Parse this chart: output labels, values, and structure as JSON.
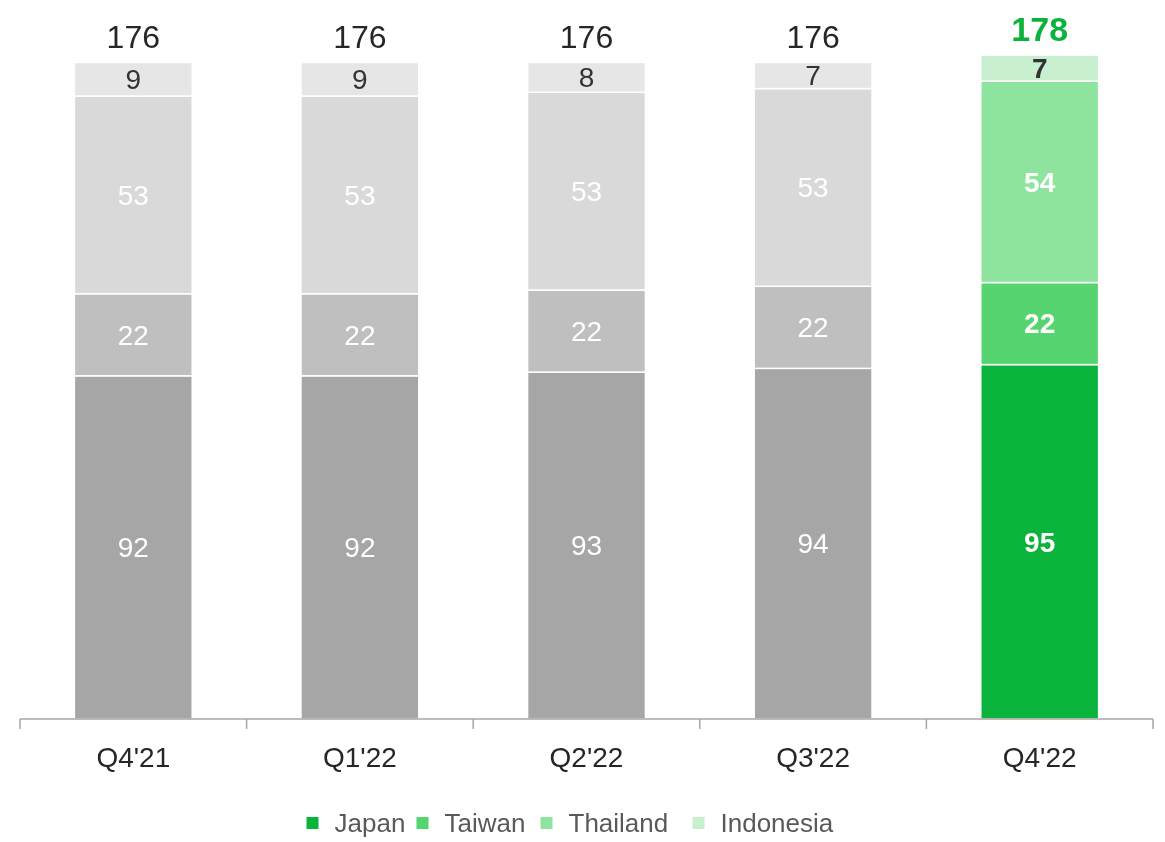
{
  "chart_data": {
    "type": "bar",
    "stacked": true,
    "data_labels": true,
    "legend": "bottom",
    "categories": [
      "Q4'21",
      "Q1'22",
      "Q2'22",
      "Q3'22",
      "Q4'22"
    ],
    "series": [
      {
        "name": "Japan",
        "color": "#0ab33c",
        "colors": [
          "#a6a6a6",
          "#a6a6a6",
          "#a6a6a6",
          "#a6a6a6",
          "#0ab33c"
        ],
        "values": [
          92,
          92,
          93,
          94,
          95
        ]
      },
      {
        "name": "Taiwan",
        "color": "#55d46f",
        "colors": [
          "#bfbfbf",
          "#bfbfbf",
          "#bfbfbf",
          "#bfbfbf",
          "#55d46f"
        ],
        "values": [
          22,
          22,
          22,
          22,
          22
        ]
      },
      {
        "name": "Thailand",
        "color": "#8ee39e",
        "colors": [
          "#d9d9d9",
          "#d9d9d9",
          "#d9d9d9",
          "#d9d9d9",
          "#8ee39e"
        ],
        "values": [
          53,
          53,
          53,
          53,
          54
        ]
      },
      {
        "name": "Indonesia",
        "color": "#c8f0d0",
        "colors": [
          "#e6e6e6",
          "#e6e6e6",
          "#e6e6e6",
          "#e6e6e6",
          "#c8f0d0"
        ],
        "values": [
          9,
          9,
          8,
          7,
          7
        ]
      }
    ],
    "totals": [
      "176",
      "176",
      "176",
      "176",
      "178"
    ]
  }
}
